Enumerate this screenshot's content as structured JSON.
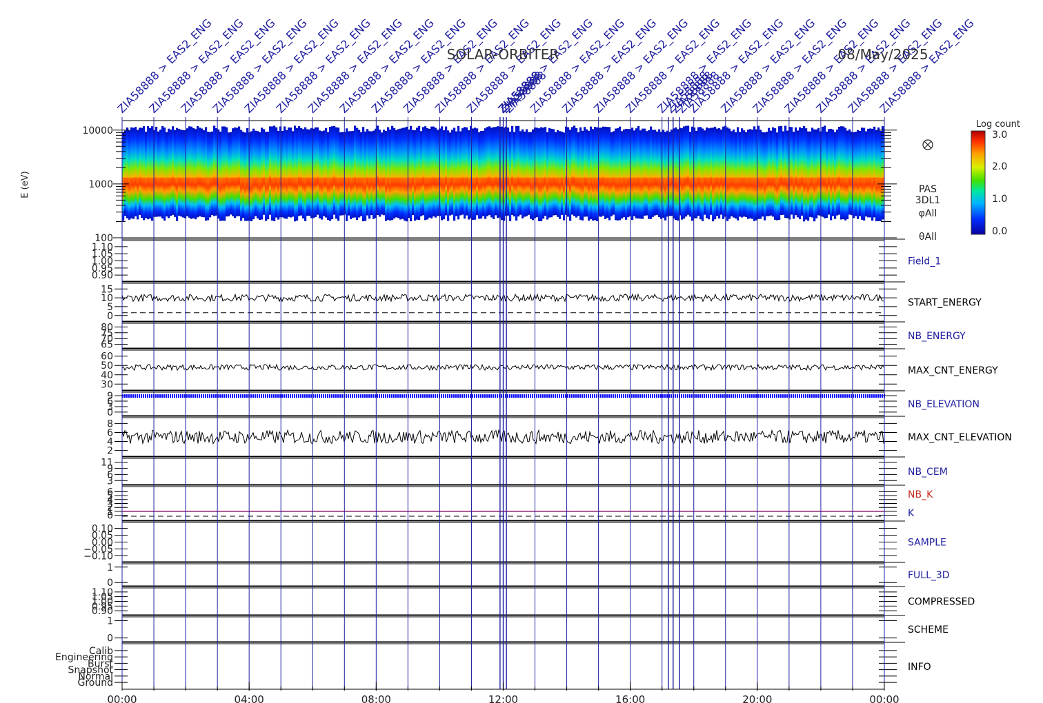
{
  "title": "SOLAR-ORBITER",
  "date": "08/May/2025",
  "colors": {
    "vline": "#1f1fa0",
    "label_blue": "#1f1fa0",
    "label_black": "#000000",
    "label_red": "#c8281e",
    "k_line": "#8a1c6e",
    "elev_marks": "#0000ff"
  },
  "top_annotations": {
    "repeated_label": "ZIA58888 > EAS2_ENG",
    "crowded_label": "ZIA58888"
  },
  "x_axis": {
    "ticks": [
      "00:00",
      "04:00",
      "08:00",
      "12:00",
      "16:00",
      "20:00",
      "00:00"
    ]
  },
  "colorbar": {
    "title": "Log count",
    "ticks": [
      "3.0",
      "2.0",
      "1.0",
      "0.0"
    ],
    "range": [
      0,
      3
    ]
  },
  "chart_data": {
    "type": "line",
    "x_range_hours": [
      0,
      24
    ],
    "spectrogram": {
      "type": "heatmap",
      "ylabel": "E (eV)",
      "yticks": [
        "10000",
        "1000",
        "100"
      ],
      "scale": "log",
      "ylim": [
        100,
        15000
      ],
      "peak_energy_ev": 1100,
      "side_labels": [
        "PAS",
        "3DL1",
        "φAll",
        "θAll"
      ],
      "side_icon": "circled-x-icon"
    },
    "panels": [
      {
        "key": "field1",
        "label": "Field_1",
        "label_color": "blue",
        "yticks": [
          "1.10",
          "1.05",
          "1.00",
          "0.95",
          "0.90"
        ]
      },
      {
        "key": "start_energy",
        "label": "START_ENERGY",
        "label_color": "black",
        "yticks": [
          "15",
          "10",
          "5",
          "0"
        ],
        "typical_value": 10
      },
      {
        "key": "nb_energy",
        "label": "NB_ENERGY",
        "label_color": "blue",
        "yticks": [
          "80",
          "75",
          "70",
          "65"
        ]
      },
      {
        "key": "max_cnt_energy",
        "label": "MAX_CNT_ENERGY",
        "label_color": "black",
        "yticks": [
          "60",
          "50",
          "40",
          "30"
        ],
        "typical_value": 48
      },
      {
        "key": "nb_elevation",
        "label": "NB_ELEVATION",
        "label_color": "blue",
        "yticks": [
          "9",
          "6",
          "3",
          "0"
        ],
        "typical_value": 9
      },
      {
        "key": "max_cnt_elevation",
        "label": "MAX_CNT_ELEVATION",
        "label_color": "black",
        "yticks": [
          "8",
          "6",
          "4",
          "2"
        ],
        "typical_value": 5
      },
      {
        "key": "nb_cem",
        "label": "NB_CEM",
        "label_color": "blue",
        "yticks": [
          "11",
          "9",
          "6",
          "3"
        ]
      },
      {
        "key": "nb_k",
        "label": "NB_K",
        "label_color": "red",
        "label2": "K",
        "label2_color": "blue",
        "yticks": [
          "6",
          "5",
          "4",
          "3",
          "2",
          "1",
          "0"
        ],
        "k_value": 1
      },
      {
        "key": "sample",
        "label": "SAMPLE",
        "label_color": "blue",
        "yticks": [
          "0.10",
          "0.05",
          "0.00",
          "−0.05",
          "−0.10"
        ]
      },
      {
        "key": "full_3d",
        "label": "FULL_3D",
        "label_color": "blue",
        "yticks": [
          "1",
          "0"
        ]
      },
      {
        "key": "compressed",
        "label": "COMPRESSED",
        "label_color": "black",
        "yticks": [
          "1.10",
          "1.05",
          "1.00",
          "0.95",
          "0.90"
        ]
      },
      {
        "key": "scheme",
        "label": "SCHEME",
        "label_color": "black",
        "yticks": [
          "1",
          "0"
        ]
      },
      {
        "key": "info",
        "label": "INFO",
        "label_color": "black",
        "yticks": [
          "Calib",
          "Engineering",
          "Burst",
          "Snapshot",
          "Normal",
          "Ground"
        ]
      }
    ]
  }
}
